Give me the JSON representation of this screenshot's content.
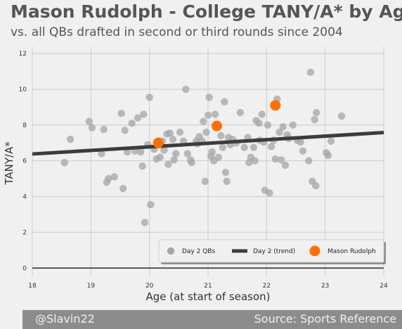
{
  "title": "Mason Rudolph - College TANY/A* by Age",
  "subtitle": "vs. all QBs drafted in second or third rounds since 2004",
  "footer": {
    "left": "@Slavin22",
    "right": "Source: Sports Reference"
  },
  "colors": {
    "background": "#f0f0f0",
    "grid": "#cbcbcb",
    "day2_points": "#a6a6a6",
    "trend": "#3c3c3c",
    "highlight": "#ff6f00",
    "footer_bg": "#8c8c8c"
  },
  "chart_data": {
    "type": "scatter",
    "xlabel": "Age (at start of season)",
    "ylabel": "TANY/A*",
    "xlim": [
      18,
      24
    ],
    "ylim": [
      -0.5,
      12.4
    ],
    "xticks": [
      18,
      19,
      20,
      21,
      22,
      23,
      24
    ],
    "yticks": [
      0,
      2,
      4,
      6,
      8,
      10,
      12
    ],
    "grid": true,
    "legend_position": "lower-right",
    "series": [
      {
        "name": "Day 2 QBs",
        "kind": "scatter",
        "points": [
          [
            18.55,
            5.9
          ],
          [
            18.65,
            7.2
          ],
          [
            18.97,
            8.2
          ],
          [
            19.02,
            7.85
          ],
          [
            19.18,
            6.4
          ],
          [
            19.22,
            7.75
          ],
          [
            19.27,
            4.8
          ],
          [
            19.3,
            5.0
          ],
          [
            19.4,
            5.1
          ],
          [
            19.52,
            8.65
          ],
          [
            19.55,
            4.45
          ],
          [
            19.58,
            7.7
          ],
          [
            19.62,
            6.5
          ],
          [
            19.7,
            8.1
          ],
          [
            19.75,
            6.55
          ],
          [
            19.8,
            8.4
          ],
          [
            19.85,
            6.5
          ],
          [
            19.88,
            5.7
          ],
          [
            19.9,
            8.6
          ],
          [
            19.92,
            2.55
          ],
          [
            19.97,
            6.9
          ],
          [
            20.0,
            9.55
          ],
          [
            20.02,
            3.55
          ],
          [
            20.08,
            6.65
          ],
          [
            20.12,
            6.1
          ],
          [
            20.18,
            6.2
          ],
          [
            20.22,
            7.1
          ],
          [
            20.25,
            6.6
          ],
          [
            20.3,
            7.5
          ],
          [
            20.32,
            5.8
          ],
          [
            20.35,
            7.55
          ],
          [
            20.4,
            7.2
          ],
          [
            20.42,
            6.05
          ],
          [
            20.45,
            6.4
          ],
          [
            20.52,
            7.6
          ],
          [
            20.58,
            7.1
          ],
          [
            20.62,
            10.0
          ],
          [
            20.65,
            6.4
          ],
          [
            20.7,
            6.05
          ],
          [
            20.72,
            5.9
          ],
          [
            20.8,
            7.1
          ],
          [
            20.82,
            6.95
          ],
          [
            20.85,
            7.35
          ],
          [
            20.9,
            7.1
          ],
          [
            20.92,
            8.2
          ],
          [
            20.95,
            4.85
          ],
          [
            20.97,
            7.6
          ],
          [
            21.0,
            8.55
          ],
          [
            21.02,
            9.55
          ],
          [
            21.05,
            6.25
          ],
          [
            21.07,
            6.5
          ],
          [
            21.1,
            6.0
          ],
          [
            21.12,
            8.6
          ],
          [
            21.18,
            6.2
          ],
          [
            21.22,
            7.4
          ],
          [
            21.25,
            6.75
          ],
          [
            21.28,
            9.3
          ],
          [
            21.3,
            5.35
          ],
          [
            21.32,
            4.85
          ],
          [
            21.35,
            7.3
          ],
          [
            21.38,
            6.9
          ],
          [
            21.42,
            7.2
          ],
          [
            21.48,
            7.0
          ],
          [
            21.55,
            8.7
          ],
          [
            21.62,
            6.75
          ],
          [
            21.68,
            7.3
          ],
          [
            21.7,
            5.9
          ],
          [
            21.73,
            6.2
          ],
          [
            21.78,
            6.75
          ],
          [
            21.8,
            6.0
          ],
          [
            21.82,
            8.25
          ],
          [
            21.87,
            8.1
          ],
          [
            21.88,
            7.15
          ],
          [
            21.92,
            8.6
          ],
          [
            21.95,
            7.05
          ],
          [
            21.97,
            4.35
          ],
          [
            22.02,
            8.0
          ],
          [
            22.05,
            4.2
          ],
          [
            22.08,
            6.8
          ],
          [
            22.12,
            7.15
          ],
          [
            22.15,
            6.1
          ],
          [
            22.18,
            9.45
          ],
          [
            22.22,
            7.6
          ],
          [
            22.25,
            6.05
          ],
          [
            22.28,
            7.9
          ],
          [
            22.32,
            5.75
          ],
          [
            22.35,
            7.45
          ],
          [
            22.38,
            7.25
          ],
          [
            22.45,
            8.0
          ],
          [
            22.52,
            7.15
          ],
          [
            22.58,
            7.05
          ],
          [
            22.62,
            6.55
          ],
          [
            22.72,
            6.0
          ],
          [
            22.75,
            10.95
          ],
          [
            22.78,
            4.85
          ],
          [
            22.82,
            8.3
          ],
          [
            22.84,
            4.6
          ],
          [
            22.85,
            8.7
          ],
          [
            23.02,
            6.45
          ],
          [
            23.05,
            6.3
          ],
          [
            23.1,
            7.1
          ],
          [
            23.28,
            8.5
          ]
        ]
      },
      {
        "name": "Day 2 (trend)",
        "kind": "line",
        "points": [
          [
            18,
            6.38
          ],
          [
            24,
            7.58
          ]
        ]
      },
      {
        "name": "Mason Rudolph",
        "kind": "scatter",
        "points": [
          [
            20.15,
            7.0
          ],
          [
            21.15,
            7.95
          ],
          [
            22.15,
            9.1
          ]
        ]
      }
    ]
  }
}
